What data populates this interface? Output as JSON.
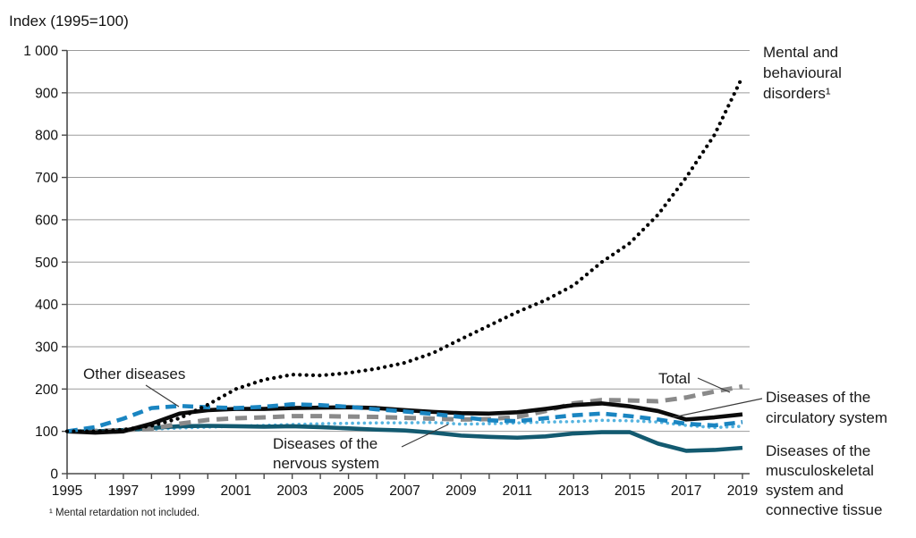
{
  "title": "Index (1995=100)",
  "footnote": "¹ Mental retardation not included.",
  "annotations": {
    "other": "Other diseases",
    "total": "Total",
    "nervous": [
      "Diseases of the",
      "nervous system"
    ],
    "mental": [
      "Mental and",
      "behavioural",
      "disorders¹"
    ],
    "circulatory": [
      "Diseases of the",
      "circulatory system"
    ],
    "musculoskeletal": [
      "Diseases of the",
      "musculoskeletal",
      "system and",
      "connective tissue"
    ]
  },
  "chart_data": {
    "type": "line",
    "title": "Index (1995=100)",
    "x": [
      1995,
      1996,
      1997,
      1998,
      1999,
      2000,
      2001,
      2002,
      2003,
      2004,
      2005,
      2006,
      2007,
      2008,
      2009,
      2010,
      2011,
      2012,
      2013,
      2014,
      2015,
      2016,
      2017,
      2018,
      2019
    ],
    "ylim": [
      0,
      1000
    ],
    "ytick_step": 100,
    "ytick_labels": [
      "0",
      "100",
      "200",
      "300",
      "400",
      "500",
      "600",
      "700",
      "800",
      "900",
      "1 000"
    ],
    "xtick_labels": [
      "1995",
      "1997",
      "1999",
      "2001",
      "2003",
      "2005",
      "2007",
      "2009",
      "2011",
      "2013",
      "2015",
      "2017",
      "2019"
    ],
    "grid": true,
    "legend_position": "outside-right",
    "series": [
      {
        "key": "nervous",
        "name": "Diseases of the nervous system",
        "color": "#56b4e0",
        "style": "dotted",
        "values": [
          100,
          100,
          102,
          105,
          108,
          110,
          112,
          114,
          116,
          118,
          119,
          120,
          120,
          121,
          117,
          118,
          120,
          122,
          123,
          126,
          125,
          122,
          114,
          109,
          112
        ]
      },
      {
        "key": "musculoskeletal",
        "name": "Diseases of the musculoskeletal system and connective tissue",
        "color": "#135a70",
        "style": "solid",
        "values": [
          100,
          100,
          103,
          108,
          112,
          113,
          112,
          111,
          112,
          110,
          107,
          104,
          102,
          97,
          90,
          87,
          85,
          88,
          95,
          98,
          98,
          71,
          54,
          56,
          61
        ]
      },
      {
        "key": "total",
        "name": "Total",
        "color": "#8a8a8a",
        "style": "dashed",
        "values": [
          100,
          101,
          103,
          106,
          118,
          127,
          131,
          133,
          136,
          136,
          135,
          134,
          132,
          130,
          128,
          129,
          134,
          148,
          166,
          174,
          173,
          171,
          180,
          194,
          206
        ]
      },
      {
        "key": "circulatory",
        "name": "Diseases of the circulatory system",
        "color": "#0b0b0b",
        "style": "solid",
        "values": [
          100,
          97,
          100,
          118,
          142,
          150,
          153,
          153,
          155,
          156,
          157,
          155,
          150,
          146,
          143,
          142,
          145,
          153,
          162,
          166,
          159,
          148,
          128,
          133,
          140
        ]
      },
      {
        "key": "other",
        "name": "Other diseases",
        "color": "#1a85c1",
        "style": "dashed",
        "values": [
          100,
          110,
          130,
          155,
          160,
          157,
          155,
          158,
          164,
          162,
          158,
          152,
          147,
          141,
          134,
          126,
          124,
          131,
          138,
          142,
          136,
          128,
          118,
          114,
          122
        ]
      },
      {
        "key": "mental",
        "name": "Mental and behavioural disorders¹",
        "color": "#000000",
        "style": "dotted",
        "values": [
          100,
          100,
          104,
          113,
          131,
          163,
          200,
          222,
          234,
          232,
          238,
          248,
          262,
          285,
          318,
          350,
          382,
          410,
          445,
          500,
          545,
          612,
          700,
          800,
          938
        ]
      }
    ]
  }
}
